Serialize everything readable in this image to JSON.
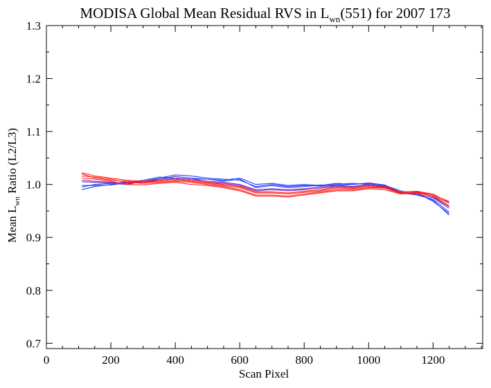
{
  "chart_data": {
    "type": "line",
    "title": {
      "main": "MODISA Global Mean Residual RVS in L",
      "sub": "wn",
      "tail": "(551) for 2007 173"
    },
    "xlabel": "Scan Pixel",
    "ylabel": {
      "pre": "Mean L",
      "sub": "wn",
      "post": " Ratio (L2/L3)"
    },
    "xlim": [
      0,
      1354
    ],
    "ylim": [
      0.69,
      1.3
    ],
    "xticks": [
      0,
      200,
      400,
      600,
      800,
      1000,
      1200
    ],
    "xtick_labels": [
      "0",
      "200",
      "400",
      "600",
      "800",
      "1000",
      "1200"
    ],
    "yticks": [
      0.7,
      0.8,
      0.9,
      1.0,
      1.1,
      1.2,
      1.3
    ],
    "ytick_labels": [
      "0.7",
      "0.8",
      "0.9",
      "1.0",
      "1.1",
      "1.2",
      "1.3"
    ],
    "grid": false,
    "legend": "none",
    "colors": {
      "blue": "#1f3fff",
      "purple": "#7a2bb0",
      "red": "#ff1a1a"
    },
    "series": [
      {
        "color": "blue",
        "x": [
          110,
          150,
          200,
          250,
          300,
          350,
          400,
          450,
          500,
          550,
          600,
          650,
          700,
          750,
          800,
          850,
          900,
          950,
          1000,
          1050,
          1100,
          1150,
          1200,
          1250
        ],
        "values": [
          0.99,
          0.996,
          1.0,
          1.002,
          1.004,
          1.01,
          1.015,
          1.012,
          1.01,
          1.008,
          1.012,
          1.0,
          1.002,
          0.998,
          1.0,
          0.998,
          1.002,
          1.0,
          1.003,
          0.999,
          0.985,
          0.982,
          0.97,
          0.942
        ]
      },
      {
        "color": "blue",
        "x": [
          110,
          150,
          200,
          250,
          300,
          350,
          400,
          450,
          500,
          550,
          600,
          650,
          700,
          750,
          800,
          850,
          900,
          950,
          1000,
          1050,
          1100,
          1150,
          1200,
          1250
        ],
        "values": [
          0.995,
          1.0,
          1.002,
          1.0,
          1.006,
          1.012,
          1.018,
          1.016,
          1.012,
          1.01,
          1.008,
          0.996,
          1.0,
          0.996,
          0.998,
          0.997,
          1.0,
          1.002,
          1.0,
          0.998,
          0.988,
          0.98,
          0.972,
          0.948
        ]
      },
      {
        "color": "blue",
        "x": [
          110,
          150,
          200,
          250,
          300,
          350,
          400,
          450,
          500,
          550,
          600,
          650,
          700,
          750,
          800,
          850,
          900,
          950,
          1000,
          1050,
          1100,
          1150,
          1200,
          1250
        ],
        "values": [
          0.998,
          0.998,
          0.999,
          1.003,
          1.008,
          1.014,
          1.012,
          1.01,
          1.01,
          1.006,
          1.01,
          0.994,
          0.998,
          0.994,
          0.996,
          0.999,
          0.998,
          1.0,
          1.002,
          0.996,
          0.984,
          0.984,
          0.968,
          0.945
        ]
      },
      {
        "color": "purple",
        "x": [
          110,
          150,
          200,
          250,
          300,
          350,
          400,
          450,
          500,
          550,
          600,
          650,
          700,
          750,
          800,
          850,
          900,
          950,
          1000,
          1050,
          1100,
          1150,
          1200,
          1250
        ],
        "values": [
          1.005,
          1.004,
          1.003,
          1.004,
          1.006,
          1.01,
          1.012,
          1.01,
          1.006,
          1.004,
          1.0,
          0.99,
          0.992,
          0.99,
          0.992,
          0.995,
          0.998,
          0.996,
          1.0,
          0.997,
          0.985,
          0.982,
          0.975,
          0.955
        ]
      },
      {
        "color": "purple",
        "x": [
          110,
          150,
          200,
          250,
          300,
          350,
          400,
          450,
          500,
          550,
          600,
          650,
          700,
          750,
          800,
          850,
          900,
          950,
          1000,
          1050,
          1100,
          1150,
          1200,
          1250
        ],
        "values": [
          1.008,
          1.006,
          1.004,
          1.002,
          1.004,
          1.008,
          1.01,
          1.008,
          1.004,
          1.002,
          0.998,
          0.988,
          0.99,
          0.988,
          0.99,
          0.993,
          0.996,
          0.995,
          0.998,
          0.995,
          0.984,
          0.98,
          0.976,
          0.958
        ]
      },
      {
        "color": "red",
        "x": [
          110,
          150,
          200,
          250,
          300,
          350,
          400,
          450,
          500,
          550,
          600,
          650,
          700,
          750,
          800,
          850,
          900,
          950,
          1000,
          1050,
          1100,
          1150,
          1200,
          1250
        ],
        "values": [
          1.02,
          1.012,
          1.008,
          1.006,
          1.004,
          1.006,
          1.008,
          1.006,
          1.002,
          0.998,
          0.994,
          0.984,
          0.984,
          0.982,
          0.985,
          0.988,
          0.993,
          0.992,
          0.996,
          0.994,
          0.984,
          0.985,
          0.978,
          0.965
        ]
      },
      {
        "color": "red",
        "x": [
          110,
          150,
          200,
          250,
          300,
          350,
          400,
          450,
          500,
          550,
          600,
          650,
          700,
          750,
          800,
          850,
          900,
          950,
          1000,
          1050,
          1100,
          1150,
          1200,
          1250
        ],
        "values": [
          1.016,
          1.014,
          1.01,
          1.004,
          1.002,
          1.004,
          1.006,
          1.004,
          1.0,
          0.996,
          0.99,
          0.98,
          0.98,
          0.978,
          0.982,
          0.986,
          0.99,
          0.99,
          0.994,
          0.993,
          0.983,
          0.986,
          0.98,
          0.968
        ]
      },
      {
        "color": "red",
        "x": [
          110,
          150,
          200,
          250,
          300,
          350,
          400,
          450,
          500,
          550,
          600,
          650,
          700,
          750,
          800,
          850,
          900,
          950,
          1000,
          1050,
          1100,
          1150,
          1200,
          1250
        ],
        "values": [
          1.012,
          1.01,
          1.006,
          1.0,
          0.999,
          1.002,
          1.004,
          1.0,
          0.998,
          0.994,
          0.988,
          0.978,
          0.978,
          0.976,
          0.98,
          0.984,
          0.988,
          0.988,
          0.992,
          0.99,
          0.982,
          0.984,
          0.978,
          0.96
        ]
      },
      {
        "color": "red",
        "x": [
          110,
          150,
          200,
          250,
          300,
          350,
          400,
          450,
          500,
          550,
          600,
          650,
          700,
          750,
          800,
          850,
          900,
          950,
          1000,
          1050,
          1100,
          1150,
          1200,
          1250
        ],
        "values": [
          1.022,
          1.016,
          1.012,
          1.008,
          1.006,
          1.008,
          1.01,
          1.008,
          1.004,
          1.0,
          0.996,
          0.986,
          0.986,
          0.984,
          0.987,
          0.99,
          0.995,
          0.994,
          0.998,
          0.996,
          0.986,
          0.987,
          0.982,
          0.966
        ]
      }
    ]
  }
}
